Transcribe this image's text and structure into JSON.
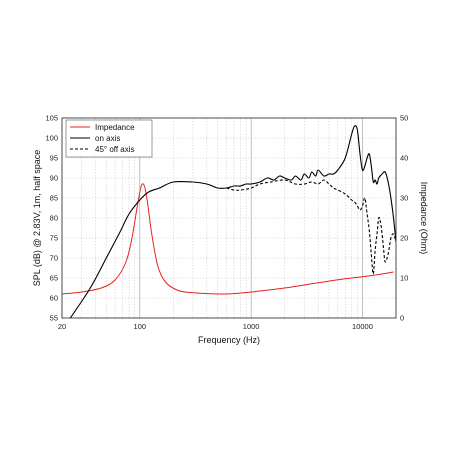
{
  "chart_data": {
    "type": "line",
    "xlabel": "Frequency (Hz)",
    "ylabel_left": "SPL (dB) @ 2.83V, 1m, half space",
    "ylabel_right": "Impedance (Ohm)",
    "x_scale": "log",
    "xlim": [
      20,
      20000
    ],
    "ylim_left": [
      55,
      105
    ],
    "ylim_right": [
      0,
      50
    ],
    "grid": true,
    "legend_position": "top-left",
    "x_ticks": [
      {
        "value": 20,
        "label": "20"
      },
      {
        "value": 100,
        "label": "100"
      },
      {
        "value": 1000,
        "label": "1000"
      },
      {
        "value": 10000,
        "label": "10000"
      }
    ],
    "y_left_ticks": [
      {
        "value": 55,
        "label": "55"
      },
      {
        "value": 60,
        "label": "60"
      },
      {
        "value": 65,
        "label": "65"
      },
      {
        "value": 70,
        "label": "70"
      },
      {
        "value": 75,
        "label": "75"
      },
      {
        "value": 80,
        "label": "80"
      },
      {
        "value": 85,
        "label": "85"
      },
      {
        "value": 90,
        "label": "90"
      },
      {
        "value": 95,
        "label": "95"
      },
      {
        "value": 100,
        "label": "100"
      },
      {
        "value": 105,
        "label": "105"
      }
    ],
    "y_right_ticks": [
      {
        "value": 0,
        "label": "0"
      },
      {
        "value": 10,
        "label": "10"
      },
      {
        "value": 20,
        "label": "20"
      },
      {
        "value": 30,
        "label": "30"
      },
      {
        "value": 40,
        "label": "40"
      },
      {
        "value": 50,
        "label": "50"
      }
    ],
    "series": [
      {
        "name": "Impedance",
        "axis": "right",
        "color": "#e8211c",
        "style": "solid",
        "points": [
          [
            20,
            6.0
          ],
          [
            30,
            6.5
          ],
          [
            45,
            7.5
          ],
          [
            60,
            9.5
          ],
          [
            75,
            14
          ],
          [
            85,
            20
          ],
          [
            95,
            28
          ],
          [
            103,
            33
          ],
          [
            110,
            33
          ],
          [
            117,
            29
          ],
          [
            128,
            21
          ],
          [
            145,
            13
          ],
          [
            170,
            9
          ],
          [
            220,
            6.9
          ],
          [
            300,
            6.3
          ],
          [
            500,
            6.0
          ],
          [
            700,
            6.1
          ],
          [
            1000,
            6.5
          ],
          [
            2000,
            7.5
          ],
          [
            4000,
            8.8
          ],
          [
            7000,
            9.8
          ],
          [
            10000,
            10.3
          ],
          [
            15000,
            11.0
          ],
          [
            19000,
            11.5
          ]
        ]
      },
      {
        "name": "on axis",
        "axis": "left",
        "color": "#000000",
        "style": "solid",
        "points": [
          [
            20,
            52
          ],
          [
            35,
            62
          ],
          [
            50,
            70
          ],
          [
            65,
            76
          ],
          [
            80,
            81
          ],
          [
            100,
            84.5
          ],
          [
            120,
            86.5
          ],
          [
            150,
            87.5
          ],
          [
            200,
            89
          ],
          [
            300,
            89
          ],
          [
            400,
            88.5
          ],
          [
            500,
            87.5
          ],
          [
            600,
            87.5
          ],
          [
            700,
            88
          ],
          [
            800,
            88
          ],
          [
            900,
            88.5
          ],
          [
            1000,
            88.5
          ],
          [
            1200,
            89
          ],
          [
            1400,
            90
          ],
          [
            1600,
            89.5
          ],
          [
            1800,
            90.5
          ],
          [
            2000,
            90
          ],
          [
            2300,
            89.5
          ],
          [
            2500,
            90.5
          ],
          [
            2800,
            89.5
          ],
          [
            3000,
            91
          ],
          [
            3300,
            90
          ],
          [
            3500,
            91.5
          ],
          [
            3800,
            90.5
          ],
          [
            4000,
            92
          ],
          [
            4500,
            90.5
          ],
          [
            5000,
            91
          ],
          [
            5500,
            91
          ],
          [
            6000,
            92
          ],
          [
            7000,
            95
          ],
          [
            8000,
            101
          ],
          [
            8500,
            103
          ],
          [
            9000,
            102
          ],
          [
            9500,
            96
          ],
          [
            10000,
            92
          ],
          [
            10500,
            93
          ],
          [
            11000,
            95
          ],
          [
            11500,
            96
          ],
          [
            12000,
            93
          ],
          [
            12500,
            89
          ],
          [
            13000,
            89.5
          ],
          [
            13500,
            88.5
          ],
          [
            14000,
            90
          ],
          [
            15000,
            91
          ],
          [
            16000,
            91.5
          ],
          [
            17000,
            89
          ],
          [
            18000,
            85
          ],
          [
            19000,
            80
          ],
          [
            20000,
            74
          ]
        ]
      },
      {
        "name": "45° off axis",
        "axis": "left",
        "color": "#000000",
        "style": "dashed",
        "points": [
          [
            600,
            87.5
          ],
          [
            700,
            87
          ],
          [
            800,
            87
          ],
          [
            1000,
            87.5
          ],
          [
            1200,
            88.5
          ],
          [
            1500,
            89
          ],
          [
            2000,
            89.5
          ],
          [
            2500,
            88.5
          ],
          [
            3000,
            88.5
          ],
          [
            3500,
            89
          ],
          [
            4000,
            88.5
          ],
          [
            4500,
            89.5
          ],
          [
            5000,
            88.5
          ],
          [
            5500,
            87.5
          ],
          [
            6000,
            87
          ],
          [
            7000,
            86
          ],
          [
            8000,
            84.5
          ],
          [
            8500,
            84
          ],
          [
            9000,
            83
          ],
          [
            9500,
            82
          ],
          [
            10000,
            83
          ],
          [
            10500,
            85
          ],
          [
            11000,
            81
          ],
          [
            11500,
            77
          ],
          [
            12000,
            71
          ],
          [
            12500,
            66
          ],
          [
            13000,
            72
          ],
          [
            13500,
            76
          ],
          [
            14000,
            80
          ],
          [
            14500,
            79
          ],
          [
            15000,
            76
          ],
          [
            15500,
            72
          ],
          [
            16000,
            69
          ],
          [
            17000,
            71
          ],
          [
            18000,
            75
          ],
          [
            19000,
            76
          ],
          [
            20000,
            74
          ]
        ]
      }
    ]
  }
}
